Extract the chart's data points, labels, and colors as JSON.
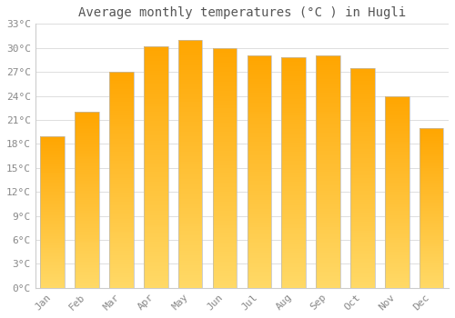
{
  "title": "Average monthly temperatures (°C ) in Hugli",
  "months": [
    "Jan",
    "Feb",
    "Mar",
    "Apr",
    "May",
    "Jun",
    "Jul",
    "Aug",
    "Sep",
    "Oct",
    "Nov",
    "Dec"
  ],
  "temperatures": [
    19,
    22,
    27,
    30.2,
    31,
    30,
    29,
    28.8,
    29,
    27.5,
    24,
    20
  ],
  "bar_color_bottom": "#FFD966",
  "bar_color_top": "#FFA500",
  "bar_edge_color": "#BBBBBB",
  "ylim": [
    0,
    33
  ],
  "yticks": [
    0,
    3,
    6,
    9,
    12,
    15,
    18,
    21,
    24,
    27,
    30,
    33
  ],
  "ytick_labels": [
    "0°C",
    "3°C",
    "6°C",
    "9°C",
    "12°C",
    "15°C",
    "18°C",
    "21°C",
    "24°C",
    "27°C",
    "30°C",
    "33°C"
  ],
  "background_color": "#ffffff",
  "grid_color": "#dddddd",
  "title_fontsize": 10,
  "tick_fontsize": 8,
  "font_color": "#888888",
  "bar_width": 0.7,
  "n_gradient_steps": 100
}
